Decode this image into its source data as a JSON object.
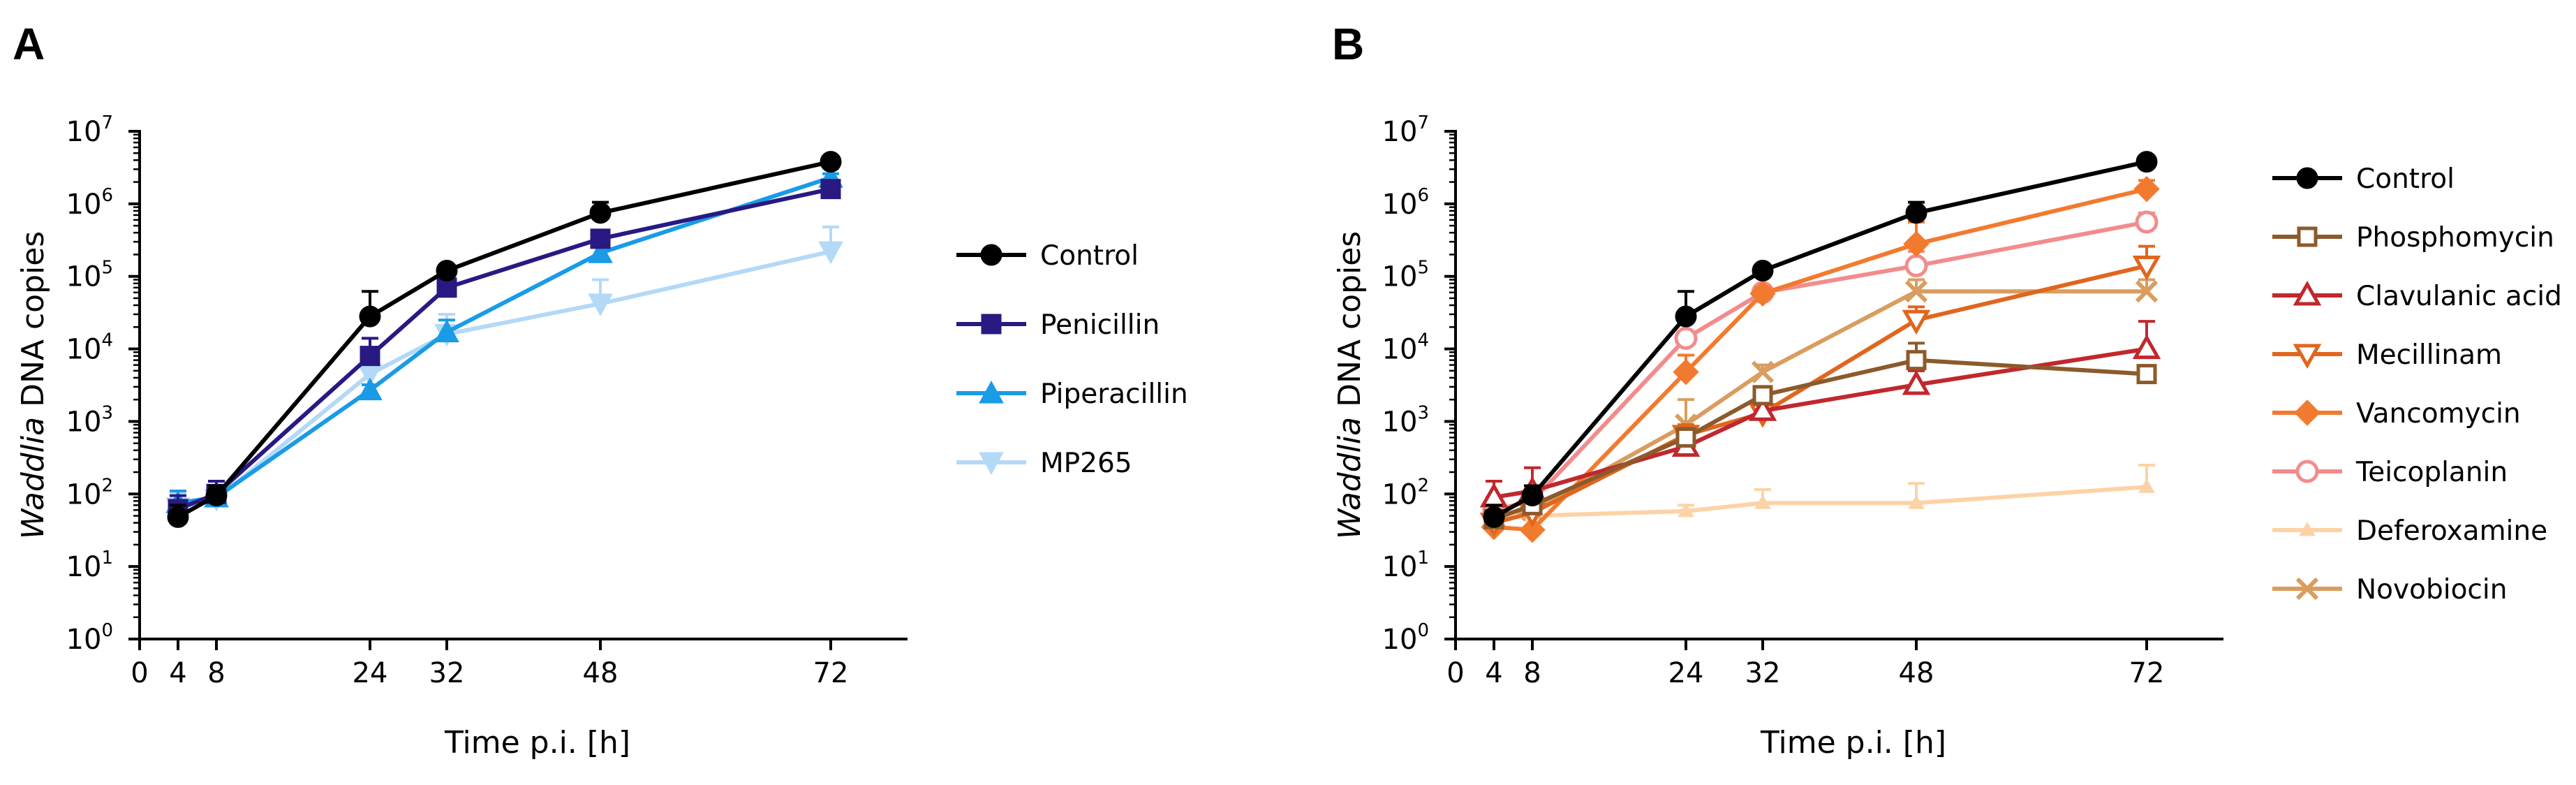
{
  "chart_data": [
    {
      "type": "line",
      "panel_label": "A",
      "xlabel": "Time p.i. [h]",
      "ylabel_italic": "Waddlia",
      "ylabel_rest": " DNA copies",
      "x_ticks": [
        0,
        4,
        8,
        24,
        32,
        48,
        72
      ],
      "x_tick_labels": [
        "0",
        "4",
        "8",
        "24",
        "32",
        "48",
        "72"
      ],
      "y_scale": "log10",
      "y_ticks_exp": [
        0,
        1,
        2,
        3,
        4,
        5,
        6,
        7
      ],
      "y_tick_base": "10",
      "xlim": [
        0,
        80
      ],
      "ylim": [
        1,
        10000000
      ],
      "legend_position": "right",
      "series": [
        {
          "name": "Control",
          "color": "#000000",
          "marker": "circle",
          "x": [
            4,
            8,
            24,
            32,
            48,
            72
          ],
          "values": [
            48,
            95,
            28000,
            120000,
            750000,
            3800000
          ],
          "err_upper": [
            70,
            130,
            62000,
            135000,
            1050000,
            4100000
          ]
        },
        {
          "name": "Penicillin",
          "color": "#281a82",
          "marker": "square",
          "x": [
            4,
            8,
            24,
            32,
            48,
            72
          ],
          "values": [
            62,
            100,
            8000,
            70000,
            330000,
            1600000
          ],
          "err_upper": [
            95,
            150,
            14000,
            85000,
            400000,
            1800000
          ]
        },
        {
          "name": "Piperacillin",
          "color": "#1a9be6",
          "marker": "triangle-up",
          "x": [
            4,
            8,
            24,
            32,
            48,
            72
          ],
          "values": [
            75,
            90,
            2700,
            17000,
            210000,
            2300000
          ],
          "err_upper": [
            110,
            130,
            3200,
            25000,
            260000,
            2600000
          ]
        },
        {
          "name": "MP265",
          "color": "#b3d9f7",
          "marker": "triangle-down",
          "x": [
            4,
            8,
            24,
            32,
            48,
            72
          ],
          "values": [
            65,
            85,
            4500,
            16000,
            42000,
            220000
          ],
          "err_upper": [
            105,
            125,
            6000,
            30000,
            90000,
            480000
          ]
        }
      ]
    },
    {
      "type": "line",
      "panel_label": "B",
      "xlabel": "Time p.i. [h]",
      "ylabel_italic": "Waddlia",
      "ylabel_rest": " DNA copies",
      "x_ticks": [
        0,
        4,
        8,
        24,
        32,
        48,
        72
      ],
      "x_tick_labels": [
        "0",
        "4",
        "8",
        "24",
        "32",
        "48",
        "72"
      ],
      "y_scale": "log10",
      "y_ticks_exp": [
        0,
        1,
        2,
        3,
        4,
        5,
        6,
        7
      ],
      "y_tick_base": "10",
      "xlim": [
        0,
        80
      ],
      "ylim": [
        1,
        10000000
      ],
      "legend_position": "right",
      "series": [
        {
          "name": "Control",
          "color": "#000000",
          "marker": "circle",
          "x": [
            4,
            8,
            24,
            32,
            48,
            72
          ],
          "values": [
            48,
            95,
            28000,
            120000,
            750000,
            3800000
          ],
          "err_upper": [
            70,
            130,
            62000,
            135000,
            1050000,
            4100000
          ]
        },
        {
          "name": "Phosphomycin",
          "color": "#8c5a2b",
          "marker": "square-open",
          "x": [
            4,
            8,
            24,
            32,
            48,
            72
          ],
          "values": [
            45,
            70,
            600,
            2300,
            7000,
            4500
          ],
          "err_upper": [
            70,
            100,
            800,
            3000,
            12000,
            5000
          ]
        },
        {
          "name": "Clavulanic acid",
          "color": "#c0282d",
          "marker": "triangle-up-open",
          "x": [
            4,
            8,
            24,
            32,
            48,
            72
          ],
          "values": [
            90,
            110,
            450,
            1400,
            3200,
            10000
          ],
          "err_upper": [
            150,
            230,
            600,
            1800,
            5000,
            24000
          ]
        },
        {
          "name": "Mecillinam",
          "color": "#e0661e",
          "marker": "triangle-down-open",
          "x": [
            4,
            8,
            24,
            32,
            48,
            72
          ],
          "values": [
            40,
            55,
            650,
            1300,
            25000,
            140000
          ],
          "err_upper": [
            60,
            90,
            900,
            1700,
            38000,
            260000
          ]
        },
        {
          "name": "Vancomycin",
          "color": "#f27a2e",
          "marker": "diamond",
          "x": [
            4,
            8,
            24,
            32,
            48,
            72
          ],
          "values": [
            35,
            32,
            4800,
            58000,
            280000,
            1600000
          ],
          "err_upper": [
            55,
            50,
            8200,
            70000,
            560000,
            2100000
          ]
        },
        {
          "name": "Teicoplanin",
          "color": "#f28c8c",
          "marker": "circle-open",
          "x": [
            4,
            8,
            24,
            32,
            48,
            72
          ],
          "values": [
            60,
            80,
            14000,
            60000,
            140000,
            560000
          ],
          "err_upper": [
            90,
            120,
            16000,
            70000,
            220000,
            750000
          ]
        },
        {
          "name": "Deferoxamine",
          "color": "#fcd3a6",
          "marker": "triangle-up-small",
          "x": [
            4,
            8,
            24,
            32,
            48,
            72
          ],
          "values": [
            50,
            50,
            58,
            75,
            75,
            125
          ],
          "err_upper": [
            70,
            70,
            70,
            115,
            140,
            250
          ]
        },
        {
          "name": "Novobiocin",
          "color": "#d99d5f",
          "marker": "x",
          "x": [
            4,
            8,
            24,
            32,
            48,
            72
          ],
          "values": [
            45,
            60,
            900,
            4800,
            62000,
            62000
          ],
          "err_upper": [
            70,
            90,
            2000,
            6000,
            90000,
            90000
          ]
        }
      ]
    }
  ]
}
